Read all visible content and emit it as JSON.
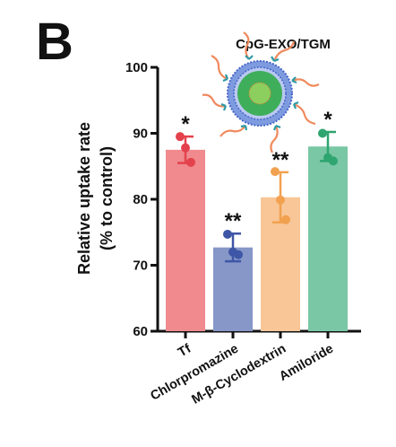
{
  "panel_label": "B",
  "chart_data": {
    "type": "bar",
    "title": "CpG-EXO/TGM",
    "xlabel": "",
    "ylabel": "Relative uptake rate",
    "ylabel_unit": "(% to control)",
    "ylim": [
      60,
      100
    ],
    "yticks": [
      60,
      70,
      80,
      90,
      100
    ],
    "grid": false,
    "legend": "none",
    "categories": [
      "Tf",
      "Chlorpromazine",
      "M-β-Cyclodextrin",
      "Amiloride"
    ],
    "values": [
      87.5,
      72.7,
      80.3,
      88.0
    ],
    "errors": [
      2.0,
      2.1,
      3.8,
      2.2
    ],
    "points": [
      [
        89.5,
        87.8,
        85.6
      ],
      [
        74.7,
        72.0,
        71.6
      ],
      [
        84.2,
        79.9,
        76.9
      ],
      [
        90.0,
        86.3,
        85.8
      ]
    ],
    "significance": [
      "*",
      "**",
      "**",
      "*"
    ],
    "colors": {
      "bar_fill": [
        "#f08a8e",
        "#8697c8",
        "#f8c697",
        "#79c7a5"
      ],
      "point": [
        "#e3424c",
        "#3e56a6",
        "#f2a14f",
        "#2fa570"
      ],
      "axis": "#111111"
    }
  }
}
